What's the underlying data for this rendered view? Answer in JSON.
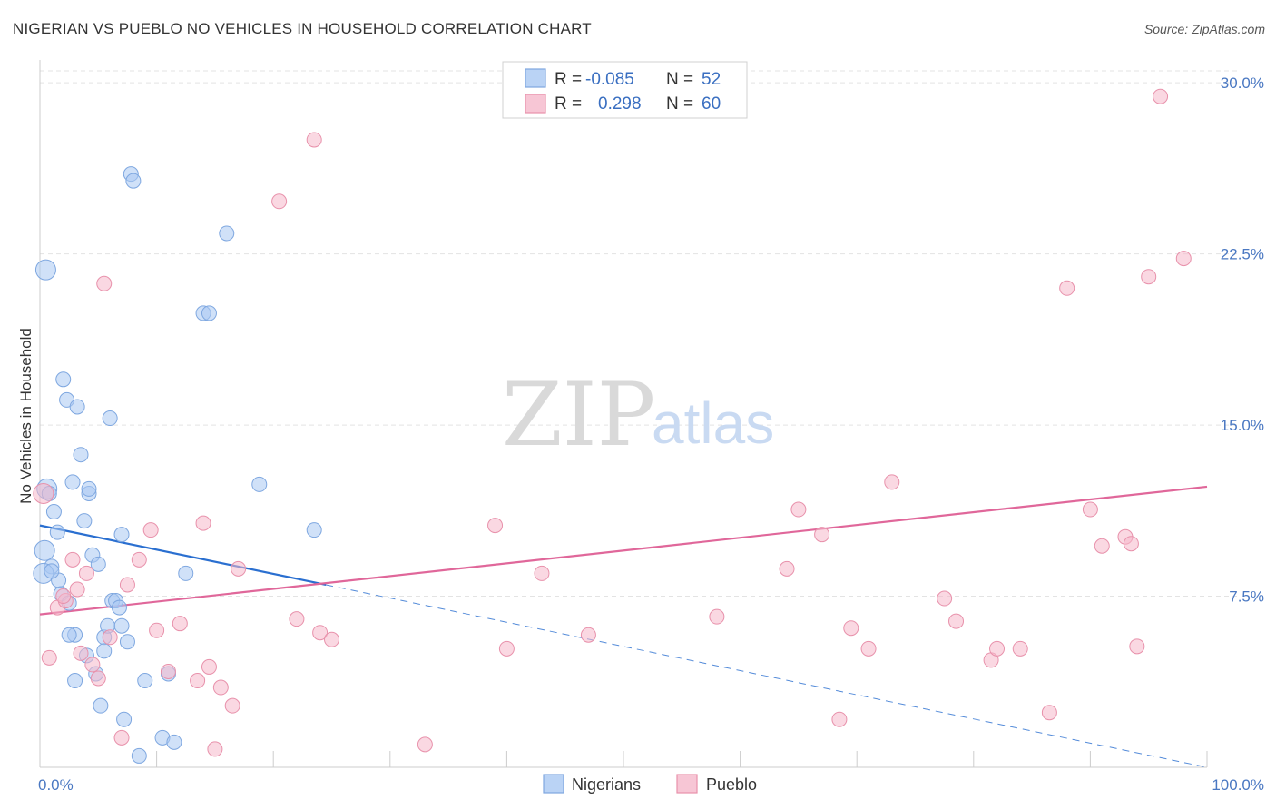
{
  "chart_data": {
    "type": "scatter",
    "title": "NIGERIAN VS PUEBLO NO VEHICLES IN HOUSEHOLD CORRELATION CHART",
    "source": "Source: ZipAtlas.com",
    "xlabel": "",
    "ylabel": "No Vehicles in Household",
    "xlim": [
      0,
      100
    ],
    "ylim": [
      0,
      31
    ],
    "x_tick_labels": [
      "0.0%",
      "100.0%"
    ],
    "y_ticks": [
      7.5,
      15.0,
      22.5,
      30.0
    ],
    "y_tick_labels": [
      "7.5%",
      "15.0%",
      "22.5%",
      "30.0%"
    ],
    "watermark": {
      "zip": "ZIP",
      "atlas": "atlas"
    },
    "legend": {
      "rows": [
        {
          "r_label": "R =",
          "r_value": "-0.085",
          "n_label": "N =",
          "n_value": "52",
          "color": "#a9c8f2"
        },
        {
          "r_label": "R =",
          "r_value": "0.298",
          "n_label": "N =",
          "n_value": "60",
          "color": "#f5b8ca"
        }
      ]
    },
    "series": [
      {
        "name": "Nigerians",
        "color": "#a9c8f2",
        "stroke": "#7ea7e0",
        "trend_color": "#2a6fd0",
        "trend": {
          "x0": 0,
          "y0": 10.6,
          "x1": 24.5,
          "y1": 8.0,
          "dash_x1": 100,
          "dash_y1": 0.0
        },
        "x": [
          0.5,
          0.6,
          0.8,
          1.0,
          1.2,
          1.5,
          1.6,
          1.8,
          2.0,
          2.3,
          2.5,
          2.8,
          3.0,
          3.2,
          3.5,
          3.8,
          4.0,
          4.2,
          4.5,
          4.8,
          5.0,
          5.2,
          5.5,
          5.8,
          6.0,
          6.2,
          6.5,
          6.8,
          7.0,
          7.2,
          7.5,
          7.8,
          8.0,
          8.5,
          9.0,
          10.5,
          11.0,
          11.5,
          12.5,
          14.0,
          14.5,
          16.0,
          18.8,
          23.5,
          0.3,
          0.4,
          1.0,
          2.5,
          3.0,
          4.2,
          5.5,
          7.0
        ],
        "y": [
          21.8,
          12.2,
          12.0,
          8.8,
          11.2,
          10.3,
          8.2,
          7.6,
          17.0,
          16.1,
          7.2,
          12.5,
          5.8,
          15.8,
          13.7,
          10.8,
          4.9,
          12.0,
          9.3,
          4.1,
          8.9,
          2.7,
          5.7,
          6.2,
          15.3,
          7.3,
          7.3,
          7.0,
          10.2,
          2.1,
          5.5,
          26.0,
          25.7,
          0.5,
          3.8,
          1.3,
          4.1,
          1.1,
          8.5,
          19.9,
          19.9,
          23.4,
          12.4,
          10.4,
          8.5,
          9.5,
          8.6,
          5.8,
          3.8,
          12.2,
          5.1,
          6.2
        ]
      },
      {
        "name": "Pueblo",
        "color": "#f5b8ca",
        "stroke": "#e891ab",
        "trend_color": "#e0679a",
        "trend": {
          "x0": 0,
          "y0": 6.7,
          "x1": 100,
          "y1": 12.3
        },
        "x": [
          0.3,
          0.8,
          1.5,
          2.2,
          2.8,
          3.2,
          3.5,
          4.0,
          4.5,
          5.0,
          5.5,
          6.0,
          7.0,
          7.5,
          8.5,
          9.5,
          10.0,
          11.0,
          12.0,
          13.5,
          14.0,
          14.5,
          15.0,
          15.5,
          16.5,
          17.0,
          20.5,
          22.0,
          23.5,
          24.0,
          25.0,
          33.0,
          39.0,
          40.0,
          43.0,
          47.0,
          58.0,
          64.0,
          65.0,
          67.0,
          68.5,
          69.5,
          71.0,
          73.0,
          77.5,
          78.5,
          81.5,
          82.0,
          84.0,
          86.5,
          88.0,
          90.0,
          91.0,
          93.0,
          93.5,
          94.0,
          95.0,
          96.0,
          98.0,
          2.0
        ],
        "y": [
          12.0,
          4.8,
          7.0,
          7.3,
          9.1,
          7.8,
          5.0,
          8.5,
          4.5,
          3.9,
          21.2,
          5.7,
          1.3,
          8.0,
          9.1,
          10.4,
          6.0,
          4.2,
          6.3,
          3.8,
          10.7,
          4.4,
          0.8,
          3.5,
          2.7,
          8.7,
          24.8,
          6.5,
          27.5,
          5.9,
          5.6,
          1.0,
          10.6,
          5.2,
          8.5,
          5.8,
          6.6,
          8.7,
          11.3,
          10.2,
          2.1,
          6.1,
          5.2,
          12.5,
          7.4,
          6.4,
          4.7,
          5.2,
          5.2,
          2.4,
          21.0,
          11.3,
          9.7,
          10.1,
          9.8,
          5.3,
          21.5,
          29.4,
          22.3,
          7.5
        ]
      }
    ]
  }
}
